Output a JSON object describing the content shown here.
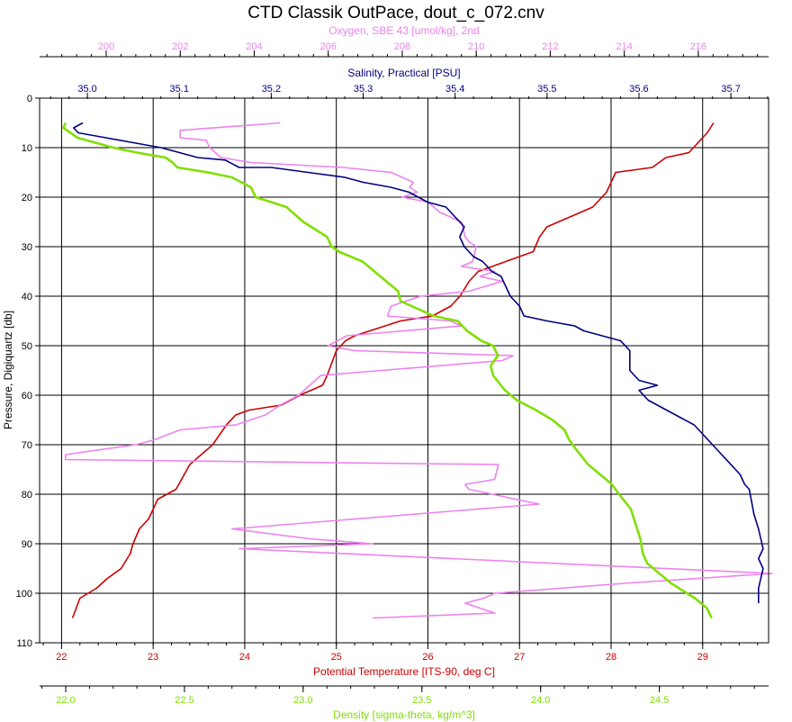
{
  "chart_data": {
    "type": "line",
    "title": "CTD Classik OutPace, dout_c_072.cnv",
    "grid": true,
    "legend": "none",
    "y_axis": {
      "label": "Pressure, Digiquartz [db]",
      "range": [
        0,
        110
      ],
      "ticks": [
        "0",
        "10",
        "20",
        "30",
        "40",
        "50",
        "60",
        "70",
        "80",
        "90",
        "100",
        "110"
      ],
      "color": "#000000"
    },
    "x_axes": [
      {
        "id": "oxygen",
        "label": "Oxygen, SBE 43 [umol/kg], 2nd",
        "position": "top",
        "range": [
          198.2,
          217.9
        ],
        "ticks": [
          "200",
          "202",
          "204",
          "206",
          "208",
          "210",
          "212",
          "214",
          "216"
        ],
        "color": "#ee82ee"
      },
      {
        "id": "salinity",
        "label": "Salinity, Practical [PSU]",
        "position": "top",
        "range": [
          34.948,
          35.741
        ],
        "ticks": [
          "35.0",
          "35.1",
          "35.2",
          "35.3",
          "35.4",
          "35.5",
          "35.6",
          "35.7"
        ],
        "color": "#000080"
      },
      {
        "id": "temperature",
        "label": "Potential Temperature [ITS-90, deg C]",
        "position": "bottom",
        "range": [
          21.76,
          29.72
        ],
        "ticks": [
          "22",
          "23",
          "24",
          "25",
          "26",
          "27",
          "28",
          "29"
        ],
        "color": "#cc0000"
      },
      {
        "id": "density",
        "label": "Density [sigma-theta, kg/m^3]",
        "position": "bottom",
        "range": [
          21.89,
          24.96
        ],
        "ticks": [
          "22.0",
          "22.5",
          "23.0",
          "23.5",
          "24.0",
          "24.5"
        ],
        "color": "#80e000"
      }
    ],
    "series": [
      {
        "axis": "temperature",
        "color": "#cc0000",
        "points": [
          [
            29.12,
            5
          ],
          [
            29.05,
            7
          ],
          [
            28.95,
            9
          ],
          [
            28.85,
            11
          ],
          [
            28.6,
            12
          ],
          [
            28.45,
            14
          ],
          [
            28.05,
            15
          ],
          [
            28.0,
            17
          ],
          [
            27.95,
            19
          ],
          [
            27.8,
            22
          ],
          [
            27.55,
            24
          ],
          [
            27.3,
            26
          ],
          [
            27.22,
            28
          ],
          [
            27.15,
            31
          ],
          [
            26.85,
            33
          ],
          [
            26.55,
            35
          ],
          [
            26.45,
            37
          ],
          [
            26.35,
            40
          ],
          [
            26.3,
            41
          ],
          [
            26.25,
            42
          ],
          [
            26.05,
            44
          ],
          [
            25.7,
            45
          ],
          [
            25.2,
            48
          ],
          [
            25.1,
            49
          ],
          [
            25.0,
            51
          ],
          [
            24.9,
            56
          ],
          [
            24.85,
            58
          ],
          [
            24.6,
            60
          ],
          [
            24.4,
            62
          ],
          [
            24.05,
            63
          ],
          [
            23.9,
            64
          ],
          [
            23.8,
            66
          ],
          [
            23.65,
            70
          ],
          [
            23.4,
            74
          ],
          [
            23.25,
            79
          ],
          [
            23.05,
            81
          ],
          [
            22.95,
            85
          ],
          [
            22.85,
            87
          ],
          [
            22.78,
            90
          ],
          [
            22.75,
            92
          ],
          [
            22.65,
            95
          ],
          [
            22.5,
            97
          ],
          [
            22.38,
            99
          ],
          [
            22.2,
            101
          ],
          [
            22.12,
            105
          ]
        ]
      },
      {
        "axis": "oxygen",
        "color": "#ee82ee",
        "points": [
          [
            204.7,
            5
          ],
          [
            202.0,
            6.5
          ],
          [
            202.0,
            8
          ],
          [
            202.7,
            8.5
          ],
          [
            202.8,
            10
          ],
          [
            203.1,
            12
          ],
          [
            203.9,
            13
          ],
          [
            206.4,
            14
          ],
          [
            207.7,
            15
          ],
          [
            208.3,
            17
          ],
          [
            208.2,
            18
          ],
          [
            208.4,
            19
          ],
          [
            208.0,
            20
          ],
          [
            208.7,
            21
          ],
          [
            209.0,
            23
          ],
          [
            209.6,
            25
          ],
          [
            209.7,
            28
          ],
          [
            209.8,
            29
          ],
          [
            210.0,
            30
          ],
          [
            209.9,
            33
          ],
          [
            209.6,
            34
          ],
          [
            210.5,
            35
          ],
          [
            210.1,
            36
          ],
          [
            210.7,
            37
          ],
          [
            209.8,
            39
          ],
          [
            208.5,
            40
          ],
          [
            207.7,
            42
          ],
          [
            207.6,
            44
          ],
          [
            209.3,
            45
          ],
          [
            209.6,
            46
          ],
          [
            206.5,
            48
          ],
          [
            206.0,
            50
          ],
          [
            206.7,
            51
          ],
          [
            211.0,
            52
          ],
          [
            210.7,
            53
          ],
          [
            205.8,
            56
          ],
          [
            205.5,
            58
          ],
          [
            205.2,
            60
          ],
          [
            204.7,
            62
          ],
          [
            204.3,
            64
          ],
          [
            203.5,
            66
          ],
          [
            202.0,
            67
          ],
          [
            201.3,
            69
          ],
          [
            200.8,
            70
          ],
          [
            198.9,
            72
          ],
          [
            198.9,
            73
          ],
          [
            210.6,
            74
          ],
          [
            210.5,
            77
          ],
          [
            209.7,
            78
          ],
          [
            209.8,
            79
          ],
          [
            211.7,
            82
          ],
          [
            203.4,
            87
          ],
          [
            205.5,
            89
          ],
          [
            207.2,
            90
          ],
          [
            203.6,
            91
          ],
          [
            218.0,
            96
          ],
          [
            214.0,
            98
          ],
          [
            210.5,
            100
          ],
          [
            210.2,
            101
          ],
          [
            209.7,
            102
          ],
          [
            210.5,
            104
          ],
          [
            207.2,
            105
          ]
        ]
      },
      {
        "axis": "salinity",
        "color": "#000080",
        "points": [
          [
            34.995,
            5
          ],
          [
            34.985,
            6
          ],
          [
            34.99,
            7
          ],
          [
            35.02,
            8
          ],
          [
            35.05,
            9
          ],
          [
            35.08,
            10
          ],
          [
            35.1,
            11
          ],
          [
            35.12,
            12
          ],
          [
            35.15,
            12.5
          ],
          [
            35.165,
            14
          ],
          [
            35.2,
            14
          ],
          [
            35.24,
            15
          ],
          [
            35.28,
            16
          ],
          [
            35.3,
            17
          ],
          [
            35.33,
            18
          ],
          [
            35.35,
            19
          ],
          [
            35.37,
            21
          ],
          [
            35.39,
            22
          ],
          [
            35.4,
            24
          ],
          [
            35.41,
            26
          ],
          [
            35.405,
            28
          ],
          [
            35.41,
            30
          ],
          [
            35.42,
            32
          ],
          [
            35.43,
            33
          ],
          [
            35.44,
            35
          ],
          [
            35.45,
            36
          ],
          [
            35.455,
            38
          ],
          [
            35.46,
            40
          ],
          [
            35.47,
            42
          ],
          [
            35.475,
            44
          ],
          [
            35.5,
            45
          ],
          [
            35.53,
            46
          ],
          [
            35.54,
            47
          ],
          [
            35.56,
            48
          ],
          [
            35.58,
            49
          ],
          [
            35.59,
            51
          ],
          [
            35.59,
            53
          ],
          [
            35.59,
            55
          ],
          [
            35.6,
            57
          ],
          [
            35.62,
            58
          ],
          [
            35.6,
            59
          ],
          [
            35.61,
            61
          ],
          [
            35.63,
            63
          ],
          [
            35.66,
            66
          ],
          [
            35.67,
            68
          ],
          [
            35.68,
            70
          ],
          [
            35.69,
            72
          ],
          [
            35.71,
            76
          ],
          [
            35.715,
            78
          ],
          [
            35.72,
            79
          ],
          [
            35.725,
            84
          ],
          [
            35.73,
            87
          ],
          [
            35.735,
            91
          ],
          [
            35.73,
            93
          ],
          [
            35.735,
            95
          ],
          [
            35.73,
            99
          ],
          [
            35.73,
            102
          ]
        ]
      },
      {
        "axis": "density",
        "color": "#80e000",
        "points": [
          [
            22.0,
            5
          ],
          [
            21.99,
            6
          ],
          [
            22.05,
            8
          ],
          [
            22.2,
            10
          ],
          [
            22.3,
            11
          ],
          [
            22.42,
            12
          ],
          [
            22.45,
            13
          ],
          [
            22.47,
            14
          ],
          [
            22.6,
            15
          ],
          [
            22.7,
            16
          ],
          [
            22.78,
            18
          ],
          [
            22.8,
            20
          ],
          [
            22.93,
            22
          ],
          [
            23.0,
            25
          ],
          [
            23.1,
            28
          ],
          [
            23.12,
            30
          ],
          [
            23.15,
            31
          ],
          [
            23.25,
            33
          ],
          [
            23.3,
            35
          ],
          [
            23.35,
            37
          ],
          [
            23.4,
            39
          ],
          [
            23.41,
            41
          ],
          [
            23.55,
            44
          ],
          [
            23.65,
            45
          ],
          [
            23.69,
            47
          ],
          [
            23.75,
            49
          ],
          [
            23.8,
            50
          ],
          [
            23.82,
            52
          ],
          [
            23.79,
            54
          ],
          [
            23.8,
            56
          ],
          [
            23.85,
            59
          ],
          [
            23.9,
            61
          ],
          [
            23.98,
            63
          ],
          [
            24.05,
            65
          ],
          [
            24.1,
            67
          ],
          [
            24.12,
            69
          ],
          [
            24.15,
            71
          ],
          [
            24.2,
            74
          ],
          [
            24.25,
            76
          ],
          [
            24.3,
            78
          ],
          [
            24.33,
            80
          ],
          [
            24.38,
            83
          ],
          [
            24.4,
            86
          ],
          [
            24.42,
            89
          ],
          [
            24.43,
            92
          ],
          [
            24.45,
            94
          ],
          [
            24.5,
            96
          ],
          [
            24.55,
            98
          ],
          [
            24.65,
            101
          ],
          [
            24.7,
            103
          ],
          [
            24.72,
            105
          ]
        ]
      }
    ]
  }
}
